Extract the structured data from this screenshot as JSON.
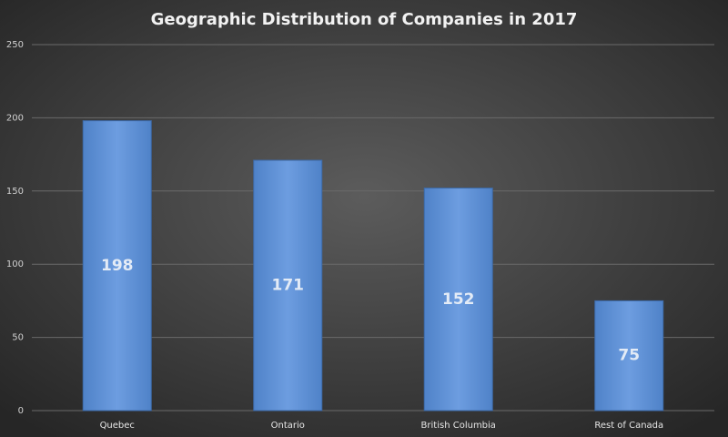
{
  "chart_data": {
    "type": "bar",
    "title": "Geographic Distribution of Companies in 2017",
    "categories": [
      "Quebec",
      "Ontario",
      "British Columbia",
      "Rest of Canada"
    ],
    "values": [
      198,
      171,
      152,
      75
    ],
    "color": "#5b8fd4",
    "ylim": [
      0,
      250
    ],
    "yticks": [
      0,
      50,
      100,
      150,
      200,
      250
    ],
    "grid": true
  }
}
